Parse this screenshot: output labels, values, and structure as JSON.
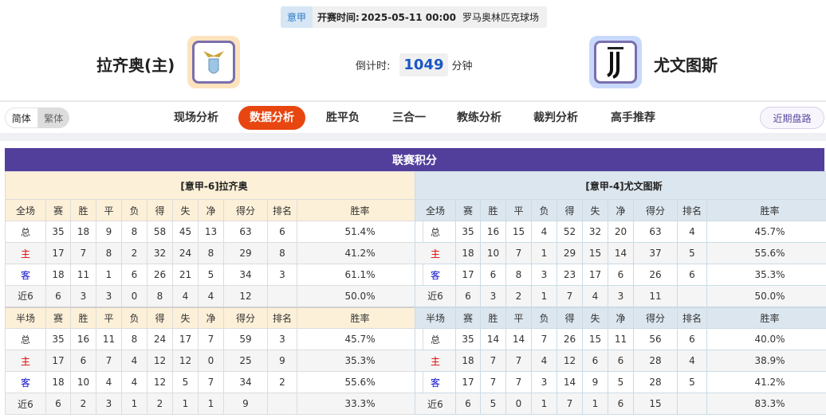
{
  "match": {
    "league": "意甲",
    "kickoff_label": "开赛时间:",
    "kickoff": "2025-05-11 00:00",
    "venue": "罗马奥林匹克球场"
  },
  "home": {
    "name": "拉齐奥(主)",
    "logo": "lazio-eagle-crest"
  },
  "away": {
    "name": "尤文图斯",
    "logo": "juventus-j-crest"
  },
  "countdown": {
    "label": "倒计时:",
    "value": "1049",
    "unit": "分钟"
  },
  "lang": {
    "simplified": "简体",
    "traditional": "繁体",
    "selected": "简体"
  },
  "nav": {
    "items": [
      "现场分析",
      "数据分析",
      "胜平负",
      "三合一",
      "教练分析",
      "裁判分析",
      "高手推荐"
    ],
    "active": "数据分析",
    "recent": "近期盘路"
  },
  "colors": {
    "accent": "#e84611",
    "title_bar": "#523f9b",
    "home_tag": "#e00000",
    "away_tag": "#1010d0"
  },
  "standings": {
    "title": "联赛积分",
    "columns_full": [
      "全场",
      "赛",
      "胜",
      "平",
      "负",
      "得",
      "失",
      "净",
      "得分",
      "排名",
      "胜率"
    ],
    "columns_half": [
      "半场",
      "赛",
      "胜",
      "平",
      "负",
      "得",
      "失",
      "净",
      "得分",
      "排名",
      "胜率"
    ],
    "home": {
      "header": "[意甲-6]拉齐奥",
      "full": [
        [
          "总",
          "35",
          "18",
          "9",
          "8",
          "58",
          "45",
          "13",
          "63",
          "6",
          "51.4%"
        ],
        [
          "主",
          "17",
          "7",
          "8",
          "2",
          "32",
          "24",
          "8",
          "29",
          "8",
          "41.2%"
        ],
        [
          "客",
          "18",
          "11",
          "1",
          "6",
          "26",
          "21",
          "5",
          "34",
          "3",
          "61.1%"
        ],
        [
          "近6",
          "6",
          "3",
          "3",
          "0",
          "8",
          "4",
          "4",
          "12",
          "",
          "50.0%"
        ]
      ],
      "half": [
        [
          "总",
          "35",
          "16",
          "11",
          "8",
          "24",
          "17",
          "7",
          "59",
          "3",
          "45.7%"
        ],
        [
          "主",
          "17",
          "6",
          "7",
          "4",
          "12",
          "12",
          "0",
          "25",
          "9",
          "35.3%"
        ],
        [
          "客",
          "18",
          "10",
          "4",
          "4",
          "12",
          "5",
          "7",
          "34",
          "2",
          "55.6%"
        ],
        [
          "近6",
          "6",
          "2",
          "3",
          "1",
          "2",
          "1",
          "1",
          "9",
          "",
          "33.3%"
        ]
      ]
    },
    "away": {
      "header": "[意甲-4]尤文图斯",
      "full": [
        [
          "总",
          "35",
          "16",
          "15",
          "4",
          "52",
          "32",
          "20",
          "63",
          "4",
          "45.7%"
        ],
        [
          "主",
          "18",
          "10",
          "7",
          "1",
          "29",
          "15",
          "14",
          "37",
          "5",
          "55.6%"
        ],
        [
          "客",
          "17",
          "6",
          "8",
          "3",
          "23",
          "17",
          "6",
          "26",
          "6",
          "35.3%"
        ],
        [
          "近6",
          "6",
          "3",
          "2",
          "1",
          "7",
          "4",
          "3",
          "11",
          "",
          "50.0%"
        ]
      ],
      "half": [
        [
          "总",
          "35",
          "14",
          "14",
          "7",
          "26",
          "15",
          "11",
          "56",
          "6",
          "40.0%"
        ],
        [
          "主",
          "18",
          "7",
          "7",
          "4",
          "12",
          "6",
          "6",
          "28",
          "4",
          "38.9%"
        ],
        [
          "客",
          "17",
          "7",
          "7",
          "3",
          "14",
          "9",
          "5",
          "28",
          "5",
          "41.2%"
        ],
        [
          "近6",
          "6",
          "5",
          "0",
          "1",
          "7",
          "1",
          "6",
          "15",
          "",
          "83.3%"
        ]
      ]
    }
  }
}
